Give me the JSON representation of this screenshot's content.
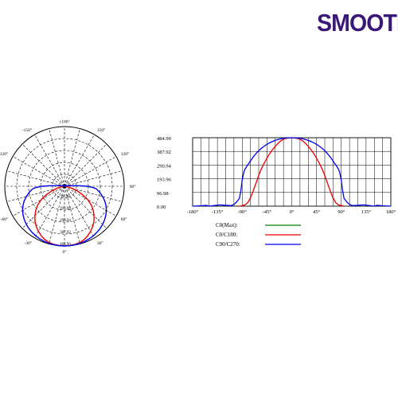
{
  "brand": "SMOOTH",
  "colors": {
    "c0_max": "#008000",
    "c0_c180": "#ee0000",
    "c90_c270": "#0000ee",
    "grid": "#000000"
  },
  "chart_data": [
    {
      "type": "polar",
      "angle_labels": [
        {
          "angle": 180,
          "text": "±180°"
        },
        {
          "angle": 150,
          "text": "150°"
        },
        {
          "angle": 120,
          "text": "120°"
        },
        {
          "angle": 90,
          "text": "90°"
        },
        {
          "angle": 60,
          "text": "60°"
        },
        {
          "angle": 30,
          "text": "30°"
        },
        {
          "angle": 0,
          "text": "0°"
        },
        {
          "angle": -30,
          "text": "-30°"
        },
        {
          "angle": -60,
          "text": "-60°"
        },
        {
          "angle": -90,
          "text": "-90°"
        },
        {
          "angle": -120,
          "text": "-120°"
        },
        {
          "angle": -150,
          "text": "-150°"
        }
      ],
      "radial_ticks": [
        96.98,
        193.96,
        290.94,
        387.92,
        484.9
      ],
      "radial_labels": [
        "96.98",
        "193.96",
        "290.94",
        "387.92",
        "484.90"
      ],
      "rmax": 484.9,
      "series": [
        {
          "name": "C0/C180",
          "color": "#ee0000",
          "points": [
            [
              -95,
              0
            ],
            [
              -90,
              4
            ],
            [
              -85,
              9
            ],
            [
              -80,
              24
            ],
            [
              -75,
              58
            ],
            [
              -70,
              108
            ],
            [
              -65,
              162
            ],
            [
              -60,
              218
            ],
            [
              -55,
              266
            ],
            [
              -50,
              305
            ],
            [
              -45,
              340
            ],
            [
              -40,
              372
            ],
            [
              -35,
              400
            ],
            [
              -30,
              423
            ],
            [
              -25,
              445
            ],
            [
              -20,
              462
            ],
            [
              -15,
              474
            ],
            [
              -10,
              480
            ],
            [
              -5,
              483
            ],
            [
              0,
              484.9
            ],
            [
              5,
              483
            ],
            [
              10,
              480
            ],
            [
              15,
              474
            ],
            [
              20,
              462
            ],
            [
              25,
              445
            ],
            [
              30,
              423
            ],
            [
              35,
              400
            ],
            [
              40,
              372
            ],
            [
              45,
              340
            ],
            [
              50,
              305
            ],
            [
              55,
              266
            ],
            [
              60,
              218
            ],
            [
              65,
              162
            ],
            [
              70,
              108
            ],
            [
              75,
              58
            ],
            [
              80,
              24
            ],
            [
              85,
              9
            ],
            [
              90,
              4
            ],
            [
              95,
              0
            ]
          ]
        },
        {
          "name": "C90/C270",
          "color": "#0000ee",
          "points": [
            [
              -180,
              0
            ],
            [
              -165,
              3
            ],
            [
              -155,
              6
            ],
            [
              -150,
              0
            ],
            [
              -140,
              5
            ],
            [
              -130,
              9
            ],
            [
              -120,
              6
            ],
            [
              -110,
              4
            ],
            [
              -105,
              12
            ],
            [
              -100,
              30
            ],
            [
              -97,
              45
            ],
            [
              -95,
              55
            ],
            [
              -92,
              120
            ],
            [
              -90,
              185
            ],
            [
              -87,
              240
            ],
            [
              -85,
              262
            ],
            [
              -80,
              292
            ],
            [
              -75,
              320
            ],
            [
              -70,
              348
            ],
            [
              -65,
              372
            ],
            [
              -60,
              393
            ],
            [
              -55,
              410
            ],
            [
              -50,
              425
            ],
            [
              -45,
              438
            ],
            [
              -40,
              449
            ],
            [
              -35,
              458
            ],
            [
              -30,
              466
            ],
            [
              -25,
              472
            ],
            [
              -20,
              477
            ],
            [
              -15,
              481
            ],
            [
              -10,
              483
            ],
            [
              -5,
              484
            ],
            [
              0,
              484.9
            ],
            [
              5,
              484
            ],
            [
              10,
              483
            ],
            [
              15,
              481
            ],
            [
              20,
              477
            ],
            [
              25,
              472
            ],
            [
              30,
              466
            ],
            [
              35,
              458
            ],
            [
              40,
              449
            ],
            [
              45,
              438
            ],
            [
              50,
              425
            ],
            [
              55,
              410
            ],
            [
              60,
              393
            ],
            [
              65,
              372
            ],
            [
              70,
              348
            ],
            [
              75,
              320
            ],
            [
              80,
              292
            ],
            [
              85,
              262
            ],
            [
              87,
              240
            ],
            [
              90,
              185
            ],
            [
              92,
              120
            ],
            [
              95,
              55
            ],
            [
              97,
              45
            ],
            [
              100,
              30
            ],
            [
              105,
              12
            ],
            [
              110,
              4
            ],
            [
              120,
              6
            ],
            [
              130,
              9
            ],
            [
              140,
              5
            ],
            [
              150,
              0
            ],
            [
              155,
              6
            ],
            [
              165,
              3
            ],
            [
              180,
              0
            ]
          ]
        }
      ]
    },
    {
      "type": "line",
      "xlim": [
        -180,
        180
      ],
      "ylim": [
        0,
        484.9
      ],
      "x_ticks": [
        -180,
        -135,
        -90,
        -45,
        0,
        45,
        90,
        135,
        180
      ],
      "x_tick_labels": [
        "-180°",
        "-135°",
        "-90°",
        "-45°",
        "0°",
        "45°",
        "90°",
        "135°",
        "180°"
      ],
      "y_ticks": [
        0,
        96.98,
        193.96,
        290.94,
        387.92,
        484.9
      ],
      "y_tick_labels": [
        "0.00",
        "96.98",
        "193.96",
        "290.94",
        "387.92",
        "484.90"
      ],
      "grid": true,
      "legend": [
        {
          "label": "C0(Max):",
          "color": "#008000"
        },
        {
          "label": "C0/C180:",
          "color": "#ee0000"
        },
        {
          "label": "C90/C270:",
          "color": "#0000ee"
        }
      ]
    }
  ]
}
